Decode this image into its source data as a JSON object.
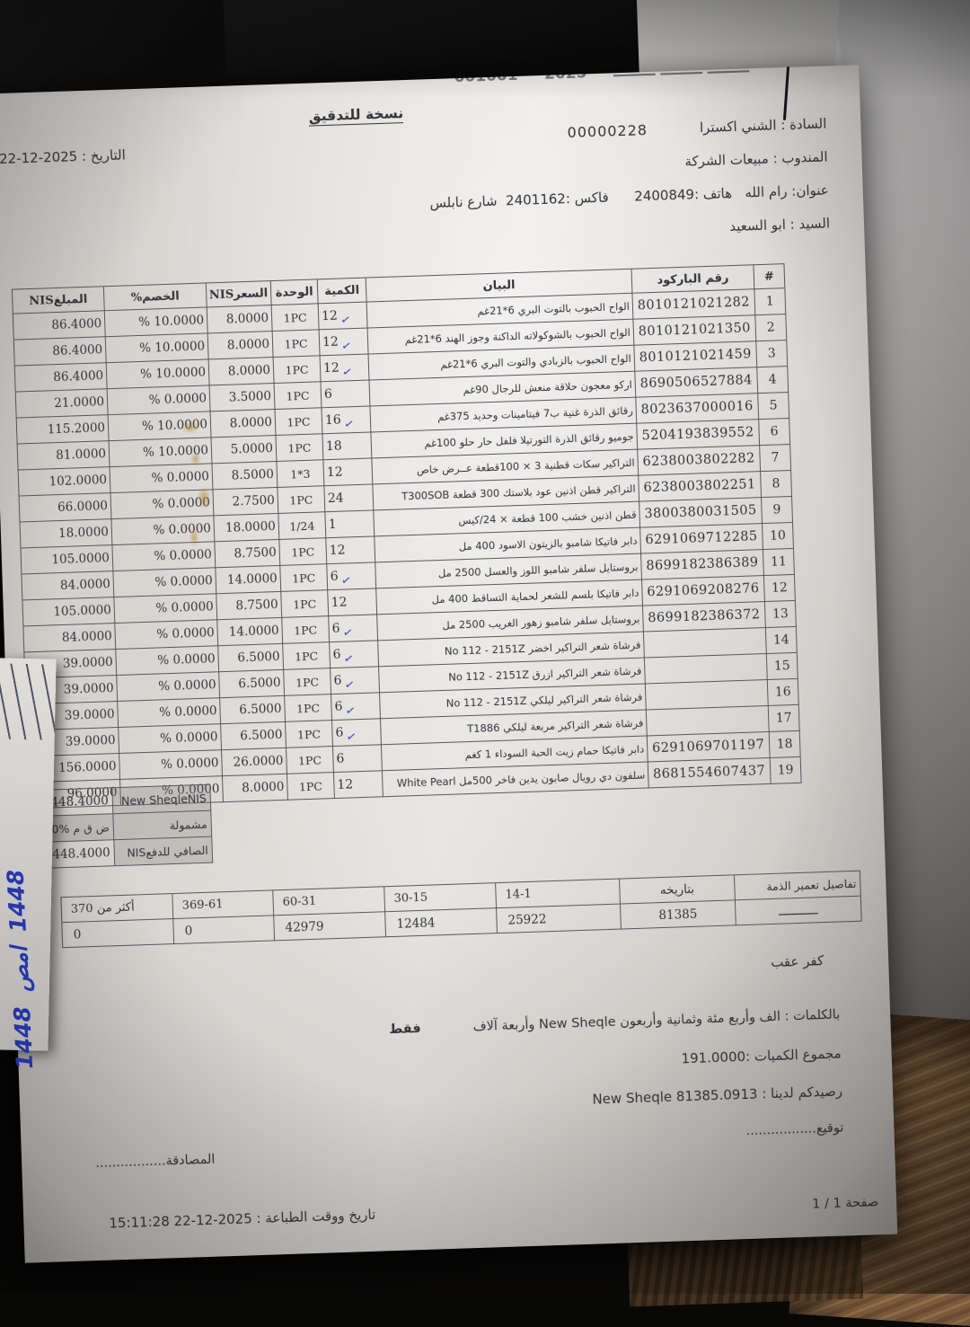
{
  "page": {
    "title_copy": "نسخة للتدقيق",
    "top_clipped": "ــــــــ ــــــــ ــــــــ     2025     001001",
    "date_line": "التاريخ : 2025-12-22",
    "page_number": "صفحة 1 / 1",
    "print_line": "تاريخ ووقت الطباعة : 2025-12-22  15:11:28"
  },
  "customer": {
    "line_sada": "السادة : الشني اكسترا",
    "account_no": "00000228",
    "line_mandoob": "المندوب : مبيعات الشركة",
    "line_address": "عنوان: رام الله   هاتف :2400849      فاكس :2401162  شارع نابلس",
    "line_sayyed": "السيد : ابو السعيد"
  },
  "table": {
    "headers": [
      "#",
      "رقم الباركود",
      "البيان",
      "الكمية",
      "الوحدة",
      "السعرNIS",
      "الخصم%",
      "المبلغNIS"
    ],
    "rows": [
      {
        "no": "1",
        "barcode": "8010121021282",
        "desc": "الواح الحبوب بالتوت البري 6*21غم",
        "qty": "12",
        "unit": "1PC",
        "price": "8.0000",
        "disc": "% 10.0000",
        "amount": "86.4000",
        "checked": true
      },
      {
        "no": "2",
        "barcode": "8010121021350",
        "desc": "الواح الحبوب بالشوكولاته الداكنة وجوز الهند 6*21غم",
        "qty": "12",
        "unit": "1PC",
        "price": "8.0000",
        "disc": "% 10.0000",
        "amount": "86.4000",
        "checked": true
      },
      {
        "no": "3",
        "barcode": "8010121021459",
        "desc": "الواح الحبوب بالزبادي والتوت البري 6*21غم",
        "qty": "12",
        "unit": "1PC",
        "price": "8.0000",
        "disc": "% 10.0000",
        "amount": "86.4000",
        "checked": true
      },
      {
        "no": "4",
        "barcode": "8690506527884",
        "desc": "اركو معجون حلاقة منعش للرجال 90غم",
        "qty": "6",
        "unit": "1PC",
        "price": "3.5000",
        "disc": "% 0.0000",
        "amount": "21.0000",
        "checked": false
      },
      {
        "no": "5",
        "barcode": "8023637000016",
        "desc": "رقائق الذرة غنية ب7 فيتامينات وحديد 375غم",
        "qty": "16",
        "unit": "1PC",
        "price": "8.0000",
        "disc": "% 10.0000",
        "amount": "115.2000",
        "checked": true
      },
      {
        "no": "6",
        "barcode": "5204193839552",
        "desc": "جوميو رقائق الذرة التورتيلا فلفل حار حلو 100غم",
        "qty": "18",
        "unit": "1PC",
        "price": "5.0000",
        "disc": "% 10.0000",
        "amount": "81.0000",
        "checked": false
      },
      {
        "no": "7",
        "barcode": "6238003802282",
        "desc": "التراكير سكات قطنية 3 × 100قطعة عــرض خاص",
        "qty": "12",
        "unit": "1*3",
        "price": "8.5000",
        "disc": "% 0.0000",
        "amount": "102.0000",
        "checked": false
      },
      {
        "no": "8",
        "barcode": "6238003802251",
        "desc": "التراكير قطن اذنين عود بلاستك 300 قطعة T300SOB",
        "qty": "24",
        "unit": "1PC",
        "price": "2.7500",
        "disc": "% 0.0000",
        "amount": "66.0000",
        "checked": false
      },
      {
        "no": "9",
        "barcode": "3800380031505",
        "desc": "قطن اذنين خشب 100 قطعة × 24/كيس",
        "qty": "1",
        "unit": "1/24",
        "price": "18.0000",
        "disc": "% 0.0000",
        "amount": "18.0000",
        "checked": false
      },
      {
        "no": "10",
        "barcode": "6291069712285",
        "desc": "دابر فاتيكا شامبو بالزيتون الاسود 400 مل",
        "qty": "12",
        "unit": "1PC",
        "price": "8.7500",
        "disc": "% 0.0000",
        "amount": "105.0000",
        "checked": false
      },
      {
        "no": "11",
        "barcode": "8699182386389",
        "desc": "بروستايل سلفر شامبو اللوز والعسل 2500 مل",
        "qty": "6",
        "unit": "1PC",
        "price": "14.0000",
        "disc": "% 0.0000",
        "amount": "84.0000",
        "checked": true
      },
      {
        "no": "12",
        "barcode": "6291069208276",
        "desc": "دابر فاتيكا بلسم للشعر لحماية التساقط 400 مل",
        "qty": "12",
        "unit": "1PC",
        "price": "8.7500",
        "disc": "% 0.0000",
        "amount": "105.0000",
        "checked": false
      },
      {
        "no": "13",
        "barcode": "8699182386372",
        "desc": "بروستايل سلفر شامبو زهور الغريب 2500 مل",
        "qty": "6",
        "unit": "1PC",
        "price": "14.0000",
        "disc": "% 0.0000",
        "amount": "84.0000",
        "checked": true
      },
      {
        "no": "14",
        "barcode": "",
        "desc": "فرشاة شعر التراكير اخضر No 112 - 2151Z",
        "qty": "6",
        "unit": "1PC",
        "price": "6.5000",
        "disc": "% 0.0000",
        "amount": "39.0000",
        "checked": true
      },
      {
        "no": "15",
        "barcode": "",
        "desc": "فرشاة شعر التراكير ازرق No 112 - 2151Z",
        "qty": "6",
        "unit": "1PC",
        "price": "6.5000",
        "disc": "% 0.0000",
        "amount": "39.0000",
        "checked": true
      },
      {
        "no": "16",
        "barcode": "",
        "desc": "فرشاة شعر التراكير ليلكي No 112 - 2151Z",
        "qty": "6",
        "unit": "1PC",
        "price": "6.5000",
        "disc": "% 0.0000",
        "amount": "39.0000",
        "checked": true
      },
      {
        "no": "17",
        "barcode": "",
        "desc": "فرشاة شعر التراكير مربعة ليلكي T1886",
        "qty": "6",
        "unit": "1PC",
        "price": "6.5000",
        "disc": "% 0.0000",
        "amount": "39.0000",
        "checked": true
      },
      {
        "no": "18",
        "barcode": "6291069701197",
        "desc": "دابر فاتيكا حمام زيت الحبة السوداء 1 كغم",
        "qty": "6",
        "unit": "1PC",
        "price": "26.0000",
        "disc": "% 0.0000",
        "amount": "156.0000",
        "checked": false
      },
      {
        "no": "19",
        "barcode": "8681554607437",
        "desc": "سلفون دي رويال صابون يدين فاخر 500مل White Pearl",
        "qty": "12",
        "unit": "1PC",
        "price": "8.0000",
        "disc": "% 0.0000",
        "amount": "96.0000",
        "checked": false
      }
    ]
  },
  "totals": {
    "rows": [
      {
        "label": "New SheqleNIS",
        "value": "1448.4000"
      },
      {
        "label": "مشمولة",
        "value": "ض ق م %16.0"
      },
      {
        "label": "الصافي للدفعNIS",
        "value": "1448.4000"
      }
    ]
  },
  "aging": {
    "label": "تفاصيل تعمير الذمة",
    "dash": "ـــــــــــ",
    "cols": [
      "بتاريخه",
      "14-1",
      "30-15",
      "60-31",
      "369-61",
      "أكثر من 370"
    ],
    "values": [
      "81385",
      "25922",
      "12484",
      "42979",
      "0",
      "0"
    ]
  },
  "branch": {
    "name": "كفر عقب"
  },
  "footer": {
    "words_label_value": "بالكلمات :  الف وأربع مئة وثمانية وأربعون New Sheqle وأربعة آلاف",
    "only": "فقط",
    "qty_total": "مجموع الكميات :191.0000",
    "balance": "رصيدكم لدينا : New Sheqle 81385.0913",
    "signature": "توقيع.................",
    "certification": "المصادقة................."
  },
  "handwriting": {
    "note_a": "1448",
    "note_b": "امص",
    "note_c": "1448"
  },
  "marks": {
    "check_glyph": "✓"
  }
}
